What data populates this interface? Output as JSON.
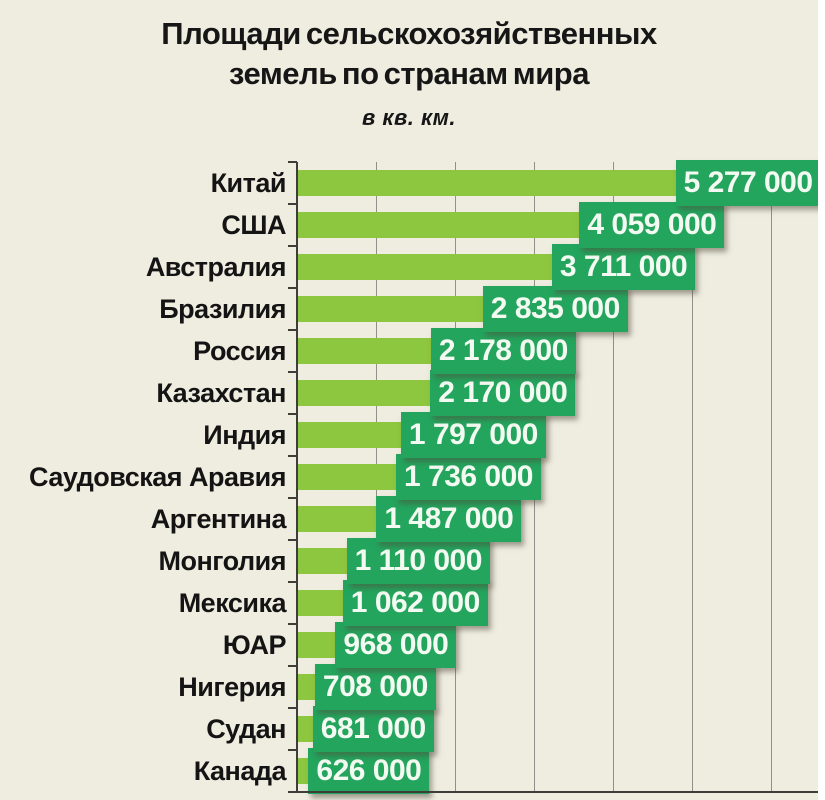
{
  "chart_data": {
    "type": "bar",
    "orientation": "horizontal",
    "title": "Площади сельскохозяйственных земель по странам мира",
    "subtitle": "в кв. км.",
    "categories": [
      "Китай",
      "США",
      "Австралия",
      "Бразилия",
      "Россия",
      "Казахстан",
      "Индия",
      "Саудовская Аравия",
      "Аргентина",
      "Монголия",
      "Мексика",
      "ЮАР",
      "Нигерия",
      "Судан",
      "Канада"
    ],
    "values": [
      5277000,
      4059000,
      3711000,
      2835000,
      2178000,
      2170000,
      1797000,
      1736000,
      1487000,
      1110000,
      1062000,
      968000,
      708000,
      681000,
      626000
    ],
    "value_labels": [
      "5 277 000",
      "4 059 000",
      "3 711 000",
      "2 835 000",
      "2 178 000",
      "2 170 000",
      "1 797 000",
      "1 736 000",
      "1 487 000",
      "1 110 000",
      "1 062 000",
      "968 000",
      "708 000",
      "681 000",
      "626 000"
    ],
    "xlim": [
      0,
      6600000
    ],
    "grid_interval": 1000000,
    "grid": true,
    "x_tick_labels_shown": false,
    "legend": "none",
    "colors": {
      "background": "#EFECE0",
      "bar": "#8DC63F",
      "value_box": "#23A55D",
      "value_text": "#F3FAF1",
      "label_text": "#141414",
      "gridline": "#90908A",
      "axis": "#3E3E38"
    }
  }
}
